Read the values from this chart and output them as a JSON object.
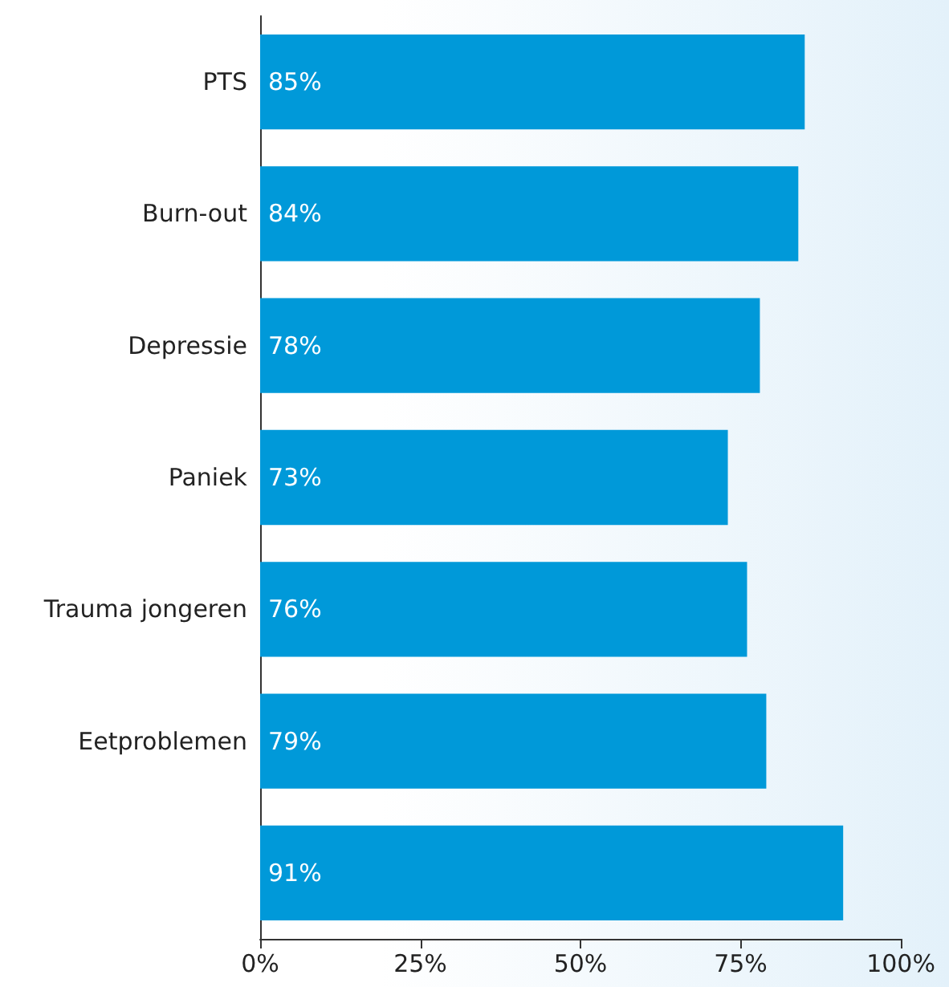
{
  "chart_data": {
    "type": "bar",
    "orientation": "horizontal",
    "categories": [
      "PTS",
      "Burn-out",
      "Depressie",
      "Paniek",
      "Trauma jongeren",
      "Eetproblemen",
      null
    ],
    "values": [
      85,
      84,
      78,
      73,
      76,
      79,
      91
    ],
    "value_labels": [
      "85%",
      "84%",
      "78%",
      "73%",
      "76%",
      "79%",
      "91%"
    ],
    "color": "#0099d9",
    "xlim": [
      0,
      100
    ],
    "xticks": [
      {
        "value": 0,
        "label": "0%"
      },
      {
        "value": 25,
        "label": "25%"
      },
      {
        "value": 50,
        "label": "50%"
      },
      {
        "value": 75,
        "label": "75%"
      },
      {
        "value": 100,
        "label": "100%"
      }
    ],
    "grid": false
  }
}
